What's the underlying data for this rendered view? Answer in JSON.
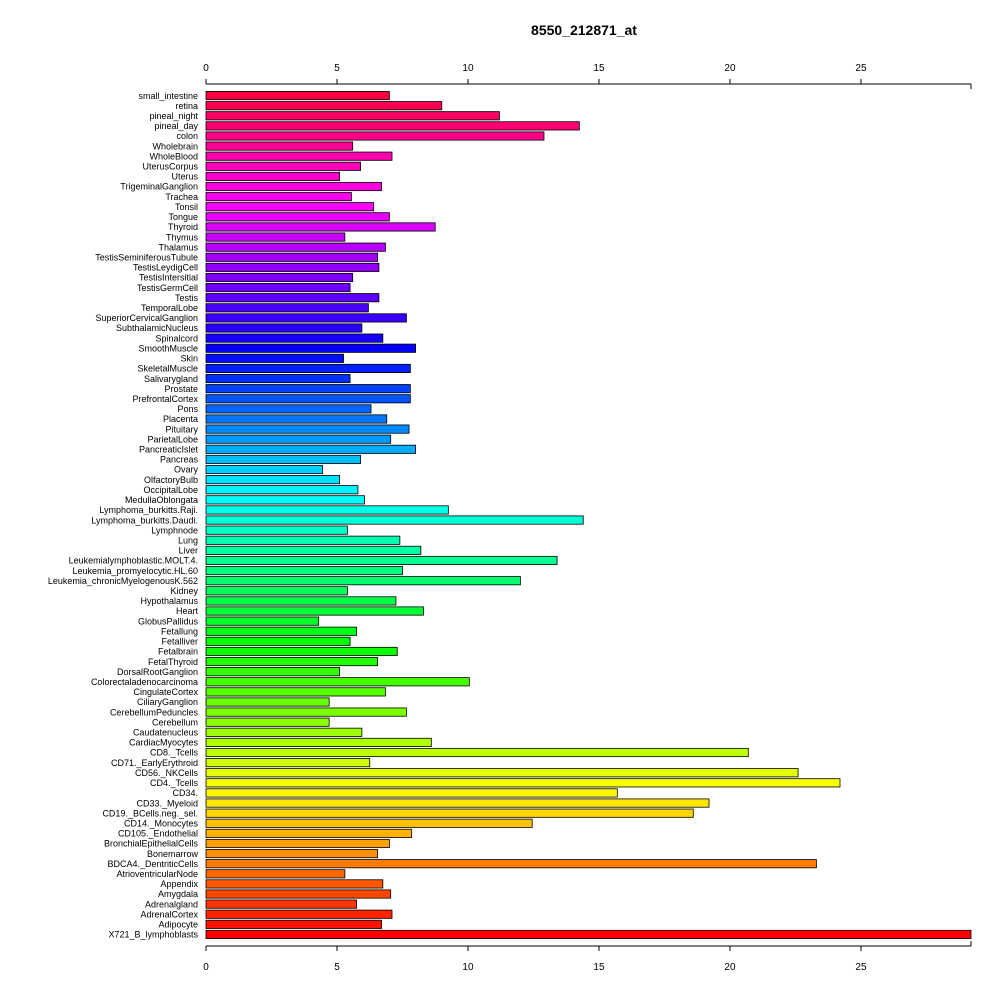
{
  "chart_data": {
    "type": "bar",
    "orientation": "horizontal",
    "title": "8550_212871_at",
    "xlabel": "",
    "ylabel": "",
    "xlim": [
      0,
      29.2
    ],
    "xticks": [
      0,
      5,
      10,
      15,
      20,
      25
    ],
    "grid": false,
    "legend": "none",
    "categories": [
      "small_intestine",
      "retina",
      "pineal_night",
      "pineal_day",
      "colon",
      "Wholebrain",
      "WholeBlood",
      "UterusCorpus",
      "Uterus",
      "TrigeminalGanglion",
      "Trachea",
      "Tonsil",
      "Tongue",
      "Thyroid",
      "Thymus",
      "Thalamus",
      "TestisSeminiferousTubule",
      "TestisLeydigCell",
      "TestisIntersitial",
      "TestisGermCell",
      "Testis",
      "TemporalLobe",
      "SuperiorCervicalGanglion",
      "SubthalamicNucleus",
      "Spinalcord",
      "SmoothMuscle",
      "Skin",
      "SkeletalMuscle",
      "Salivarygland",
      "Prostate",
      "PrefrontalCortex",
      "Pons",
      "Placenta",
      "Pituitary",
      "ParietalLobe",
      "PancreaticIslet",
      "Pancreas",
      "Ovary",
      "OlfactoryBulb",
      "OccipitalLobe",
      "MedullaOblongata",
      "Lymphoma_burkitts.Raji.",
      "Lymphoma_burkitts.Daudi.",
      "Lymphnode",
      "Lung",
      "Liver",
      "Leukemialymphoblastic.MOLT.4.",
      "Leukemia_promyelocytic.HL.60",
      "Leukemia_chronicMyelogenousK.562",
      "Kidney",
      "Hypothalamus",
      "Heart",
      "GlobusPallidus",
      "Fetallung",
      "Fetalliver",
      "Fetalbrain",
      "FetalThyroid",
      "DorsalRootGanglion",
      "Colorectaladenocarcinoma",
      "CingulateCortex",
      "CiliaryGanglion",
      "CerebellumPeduncles",
      "Cerebellum",
      "Caudatenucleus",
      "CardiacMyocytes",
      "CD8._Tcells",
      "CD71._EarlyErythroid",
      "CD56._NKCells",
      "CD4._Tcells",
      "CD34.",
      "CD33._Myeloid",
      "CD19._BCells.neg._sel.",
      "CD14._Monocytes",
      "CD105._Endothelial",
      "BronchialEpithelialCells",
      "Bonemarrow",
      "BDCA4._DentriticCells",
      "AtrioventricularNode",
      "Appendix",
      "Amygdala",
      "Adrenalgland",
      "AdrenalCortex",
      "Adipocyte",
      "X721_B_lymphoblasts"
    ],
    "values": [
      7.0,
      9.0,
      11.2,
      14.25,
      12.9,
      5.6,
      7.1,
      5.9,
      5.1,
      6.7,
      5.55,
      6.4,
      7.0,
      8.75,
      5.3,
      6.85,
      6.55,
      6.6,
      5.6,
      5.5,
      6.6,
      6.2,
      7.65,
      5.95,
      6.75,
      8.0,
      5.25,
      7.8,
      5.5,
      7.8,
      7.8,
      6.3,
      6.9,
      7.75,
      7.05,
      8.0,
      5.9,
      4.45,
      5.1,
      5.8,
      6.05,
      9.25,
      14.4,
      5.4,
      7.4,
      8.2,
      13.4,
      7.5,
      12.0,
      5.4,
      7.25,
      8.3,
      4.3,
      5.75,
      5.5,
      7.3,
      6.55,
      5.1,
      10.05,
      6.85,
      4.7,
      7.65,
      4.7,
      5.95,
      8.6,
      20.7,
      6.25,
      22.6,
      24.2,
      15.7,
      19.2,
      18.6,
      12.45,
      7.85,
      7.0,
      6.55,
      23.3,
      5.3,
      6.75,
      7.05,
      5.75,
      7.1,
      6.7,
      29.2
    ]
  }
}
